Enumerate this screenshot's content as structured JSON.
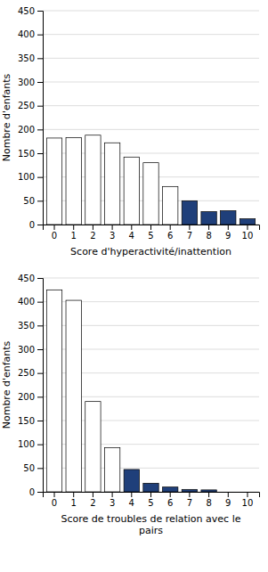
{
  "chart_data": [
    {
      "type": "bar",
      "categories": [
        0,
        1,
        2,
        3,
        4,
        5,
        6,
        7,
        8,
        9,
        10
      ],
      "values": [
        182,
        183,
        188,
        172,
        142,
        130,
        80,
        50,
        27,
        29,
        12
      ],
      "colors": [
        "#ffffff",
        "#ffffff",
        "#ffffff",
        "#ffffff",
        "#ffffff",
        "#ffffff",
        "#ffffff",
        "#1f3f7a",
        "#1f3f7a",
        "#1f3f7a",
        "#1f3f7a"
      ],
      "xlabel": "Score d'hyperactivité/inattention",
      "ylabel": "Nombre d'enfants",
      "ylim": [
        0,
        450
      ],
      "yticks": [
        0,
        50,
        100,
        150,
        200,
        250,
        300,
        350,
        400,
        450
      ],
      "grid": true
    },
    {
      "type": "bar",
      "categories": [
        0,
        1,
        2,
        3,
        4,
        5,
        6,
        7,
        8,
        9,
        10
      ],
      "values": [
        425,
        403,
        190,
        93,
        47,
        18,
        10,
        5,
        4,
        0,
        0
      ],
      "colors": [
        "#ffffff",
        "#ffffff",
        "#ffffff",
        "#ffffff",
        "#1f3f7a",
        "#1f3f7a",
        "#1f3f7a",
        "#1f3f7a",
        "#1f3f7a",
        "#ffffff",
        "#ffffff"
      ],
      "xlabel": "Score de troubles de relation avec le\npairs",
      "ylabel": "Nombre d'enfants",
      "ylim": [
        0,
        450
      ],
      "yticks": [
        0,
        50,
        100,
        150,
        200,
        250,
        300,
        350,
        400,
        450
      ],
      "grid": true
    }
  ]
}
